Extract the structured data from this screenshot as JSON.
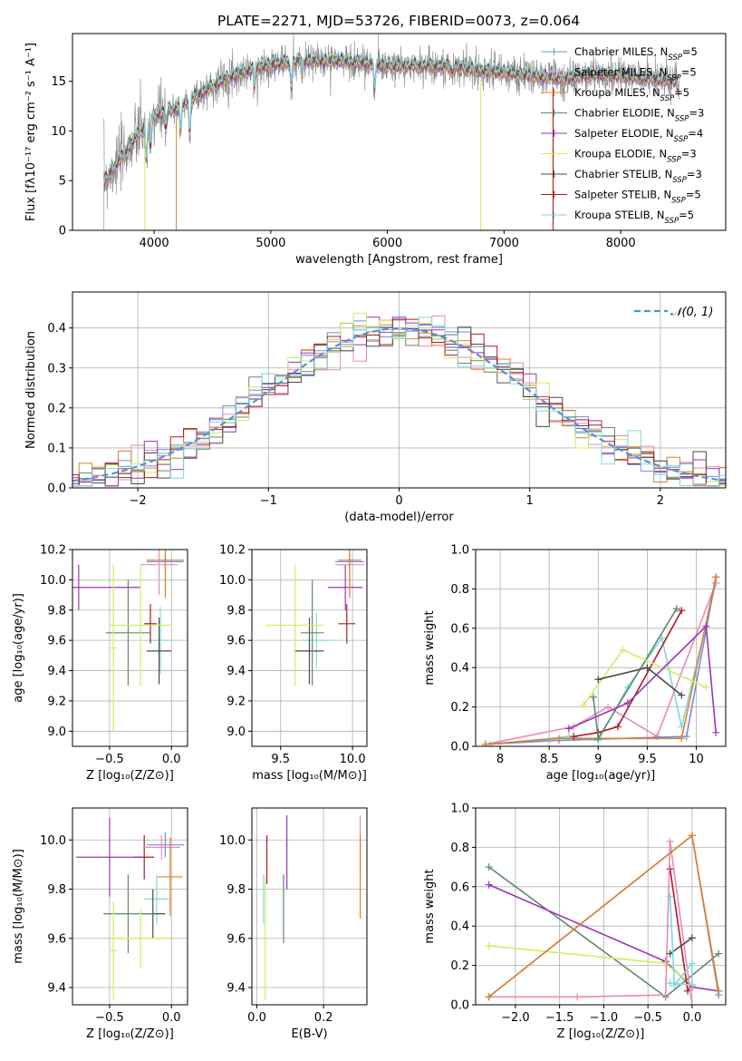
{
  "colors": {
    "chabrier_miles": "#6f8fe0",
    "salpeter_miles": "#e88ab7",
    "kroupa_miles": "#e07f28",
    "chabrier_elodie": "#5f8a6a",
    "salpeter_elodie": "#9b35b5",
    "kroupa_elodie": "#d4eb60",
    "chabrier_stelib": "#4a4a4a",
    "salpeter_stelib": "#b01a24",
    "kroupa_stelib": "#7fd9de",
    "data_gray": "#808080",
    "normal_dashed": "#5b8fd8",
    "grid": "#b0b0b0"
  },
  "chart_data": [
    {
      "id": "spectrum",
      "type": "line",
      "title": "PLATE=2271, MJD=53726, FIBERID=0073, z=0.064",
      "xlabel": "wavelength [Angstrom, rest frame]",
      "ylabel": "Flux [fλ10⁻¹⁷ erg cm⁻² s⁻¹ A⁻¹]",
      "xlim": [
        3300,
        8900
      ],
      "ylim": [
        0,
        19.8
      ],
      "xticks": [
        4000,
        5000,
        6000,
        7000,
        8000
      ],
      "yticks": [
        0,
        5,
        10,
        15
      ],
      "grid": false,
      "legend_position": "top-right",
      "legend": [
        {
          "label": "Chabrier MILES, N_SSP=5",
          "color_key": "chabrier_miles"
        },
        {
          "label": "Salpeter MILES, N_SSP=5",
          "color_key": "salpeter_miles"
        },
        {
          "label": "Kroupa MILES, N_SSP=5",
          "color_key": "kroupa_miles"
        },
        {
          "label": "Chabrier ELODIE, N_SSP=3",
          "color_key": "chabrier_elodie"
        },
        {
          "label": "Salpeter ELODIE, N_SSP=4",
          "color_key": "salpeter_elodie"
        },
        {
          "label": "Kroupa ELODIE, N_SSP=3",
          "color_key": "kroupa_elodie"
        },
        {
          "label": "Chabrier STELIB, N_SSP=3",
          "color_key": "chabrier_stelib"
        },
        {
          "label": "Salpeter STELIB, N_SSP=5",
          "color_key": "salpeter_stelib"
        },
        {
          "label": "Kroupa STELIB, N_SSP=5",
          "color_key": "kroupa_stelib"
        }
      ],
      "continuum": [
        [
          3570,
          5.0
        ],
        [
          3700,
          7.0
        ],
        [
          3850,
          9.5
        ],
        [
          4000,
          11.5
        ],
        [
          4200,
          12.3
        ],
        [
          4400,
          13.8
        ],
        [
          4600,
          15.2
        ],
        [
          4800,
          16.1
        ],
        [
          5000,
          16.7
        ],
        [
          5200,
          17.0
        ],
        [
          5500,
          17.1
        ],
        [
          5800,
          16.9
        ],
        [
          6000,
          16.5
        ],
        [
          6300,
          16.6
        ],
        [
          6600,
          16.4
        ],
        [
          6900,
          16.0
        ],
        [
          7200,
          15.6
        ],
        [
          7500,
          15.3
        ],
        [
          7800,
          15.7
        ],
        [
          8100,
          15.5
        ],
        [
          8400,
          15.1
        ],
        [
          8500,
          15.0
        ]
      ],
      "absorption_features": [
        [
          3934,
          4.0
        ],
        [
          3969,
          3.5
        ],
        [
          4102,
          2.0
        ],
        [
          4227,
          2.5
        ],
        [
          4304,
          3.5
        ],
        [
          4861,
          2.0
        ],
        [
          5175,
          3.0
        ],
        [
          5270,
          1.5
        ],
        [
          5890,
          2.5
        ],
        [
          6563,
          1.0
        ],
        [
          8498,
          1.0
        ],
        [
          8542,
          1.5
        ]
      ],
      "model_dropouts": [
        [
          3920,
          "kroupa_elodie"
        ],
        [
          4190,
          "kroupa_miles"
        ],
        [
          6800,
          "kroupa_elodie"
        ],
        [
          7420,
          "kroupa_miles"
        ],
        [
          7420,
          "salpeter_stelib"
        ]
      ]
    },
    {
      "id": "residuals",
      "type": "line",
      "xlabel": "(data-model)/error",
      "ylabel": "Normed distribution",
      "xlim": [
        -2.5,
        2.5
      ],
      "ylim": [
        0,
        0.49
      ],
      "xticks": [
        -2,
        -1,
        0,
        1,
        2
      ],
      "xticklabels": [
        "−2",
        "−1",
        "0",
        "1",
        "2"
      ],
      "yticks": [
        0.0,
        0.1,
        0.2,
        0.3,
        0.4
      ],
      "grid": true,
      "legend_position": "top-right",
      "legend": [
        {
          "label": "𝒩(0, 1)",
          "color_key": "normal_dashed"
        }
      ],
      "bin_width": 0.1
    },
    {
      "id": "age_vs_Z",
      "type": "scatter",
      "xlabel": "Z [log₁₀(Z/Z⊙)]",
      "ylabel": "age  [log₁₀(age/yr)]",
      "xlim": [
        -0.8,
        0.13
      ],
      "ylim": [
        8.9,
        10.2
      ],
      "xticks": [
        -0.5,
        0.0
      ],
      "xticklabels": [
        "−0.5",
        "0.0"
      ],
      "yticks": [
        9.0,
        9.2,
        9.4,
        9.6,
        9.8,
        10.0,
        10.2
      ],
      "grid": true,
      "errorbars": [
        {
          "x": -0.09,
          "y": 9.6,
          "xerr": 0.1,
          "yerr": 0.22,
          "color_key": "kroupa_stelib"
        },
        {
          "x": -0.17,
          "y": 9.71,
          "xerr": 0.05,
          "yerr": 0.13,
          "color_key": "salpeter_stelib"
        },
        {
          "x": -0.1,
          "y": 9.53,
          "xerr": 0.1,
          "yerr": 0.22,
          "color_key": "chabrier_stelib"
        },
        {
          "x": -0.35,
          "y": 9.65,
          "xerr": 0.18,
          "yerr": 0.35,
          "color_key": "chabrier_elodie"
        },
        {
          "x": -0.75,
          "y": 9.95,
          "xerr": 0.5,
          "yerr": 0.15,
          "color_key": "salpeter_elodie"
        },
        {
          "x": -0.25,
          "y": 9.7,
          "xerr": 0.25,
          "yerr": 0.4,
          "color_key": "kroupa_elodie"
        },
        {
          "x": -0.47,
          "y": 9.55,
          "xerr": 0.03,
          "yerr": 0.55,
          "color_key": "kroupa_elodie"
        },
        {
          "x": -0.05,
          "y": 10.12,
          "xerr": 0.15,
          "yerr": 0.05,
          "color_key": "chabrier_miles"
        },
        {
          "x": -0.1,
          "y": 10.1,
          "xerr": 0.15,
          "yerr": 0.2,
          "color_key": "salpeter_miles"
        },
        {
          "x": -0.05,
          "y": 10.13,
          "xerr": 0.15,
          "yerr": 0.25,
          "color_key": "kroupa_miles"
        }
      ]
    },
    {
      "id": "age_vs_mass",
      "type": "scatter",
      "xlabel": "mass [log₁₀(M/M⊙)]",
      "ylabel": "",
      "xlim": [
        9.3,
        10.1
      ],
      "ylim": [
        8.9,
        10.2
      ],
      "xticks": [
        9.5,
        10.0
      ],
      "xticklabels": [
        "9.5",
        "10.0"
      ],
      "yticks": [
        9.0,
        9.2,
        9.4,
        9.6,
        9.8,
        10.0,
        10.2
      ],
      "grid": true,
      "errorbars": [
        {
          "x": 9.75,
          "y": 9.6,
          "xerr": 0.1,
          "yerr": 0.18,
          "color_key": "kroupa_stelib"
        },
        {
          "x": 9.96,
          "y": 9.71,
          "xerr": 0.06,
          "yerr": 0.13,
          "color_key": "salpeter_stelib"
        },
        {
          "x": 9.7,
          "y": 9.53,
          "xerr": 0.1,
          "yerr": 0.22,
          "color_key": "chabrier_stelib"
        },
        {
          "x": 9.72,
          "y": 9.65,
          "xerr": 0.08,
          "yerr": 0.35,
          "color_key": "chabrier_elodie"
        },
        {
          "x": 9.95,
          "y": 9.95,
          "xerr": 0.12,
          "yerr": 0.15,
          "color_key": "salpeter_elodie"
        },
        {
          "x": 9.6,
          "y": 9.7,
          "xerr": 0.2,
          "yerr": 0.4,
          "color_key": "kroupa_elodie"
        },
        {
          "x": 9.98,
          "y": 10.12,
          "xerr": 0.1,
          "yerr": 0.05,
          "color_key": "chabrier_miles"
        },
        {
          "x": 9.98,
          "y": 10.1,
          "xerr": 0.1,
          "yerr": 0.2,
          "color_key": "salpeter_miles"
        },
        {
          "x": 9.98,
          "y": 10.13,
          "xerr": 0.08,
          "yerr": 0.25,
          "color_key": "kroupa_miles"
        }
      ]
    },
    {
      "id": "mass_weight_vs_age",
      "type": "line",
      "xlabel": "age  [log₁₀(age/yr)]",
      "ylabel": "mass weight",
      "xlim": [
        7.75,
        10.3
      ],
      "ylim": [
        0,
        1.0
      ],
      "xticks": [
        8.0,
        8.5,
        9.0,
        9.5,
        10.0
      ],
      "yticks": [
        0.0,
        0.2,
        0.4,
        0.6,
        0.8,
        1.0
      ],
      "grid": true,
      "series": [
        {
          "color_key": "kroupa_stelib",
          "points": [
            [
              7.9,
              0.01
            ],
            [
              8.7,
              0.05
            ],
            [
              9.0,
              0.03
            ],
            [
              9.3,
              0.3
            ],
            [
              9.65,
              0.55
            ],
            [
              9.85,
              0.1
            ],
            [
              10.2,
              0.83
            ]
          ]
        },
        {
          "color_key": "salpeter_miles",
          "points": [
            [
              7.85,
              0.01
            ],
            [
              8.75,
              0.1
            ],
            [
              9.1,
              0.2
            ],
            [
              9.6,
              0.05
            ],
            [
              10.2,
              0.83
            ]
          ]
        },
        {
          "color_key": "chabrier_miles",
          "points": [
            [
              7.85,
              0.01
            ],
            [
              8.6,
              0.03
            ],
            [
              9.9,
              0.05
            ],
            [
              10.2,
              0.86
            ]
          ]
        },
        {
          "color_key": "kroupa_miles",
          "points": [
            [
              7.85,
              0.01
            ],
            [
              8.6,
              0.04
            ],
            [
              9.85,
              0.04
            ],
            [
              10.2,
              0.86
            ]
          ]
        },
        {
          "color_key": "salpeter_stelib",
          "points": [
            [
              8.75,
              0.05
            ],
            [
              9.0,
              0.07
            ],
            [
              9.2,
              0.1
            ],
            [
              9.85,
              0.69
            ]
          ]
        },
        {
          "color_key": "chabrier_elodie",
          "points": [
            [
              8.95,
              0.25
            ],
            [
              9.0,
              0.04
            ],
            [
              9.8,
              0.7
            ]
          ]
        },
        {
          "color_key": "kroupa_elodie",
          "points": [
            [
              8.85,
              0.21
            ],
            [
              9.25,
              0.49
            ],
            [
              10.1,
              0.3
            ]
          ]
        },
        {
          "color_key": "chabrier_stelib",
          "points": [
            [
              9.0,
              0.34
            ],
            [
              9.5,
              0.4
            ],
            [
              9.85,
              0.26
            ]
          ]
        },
        {
          "color_key": "salpeter_elodie",
          "points": [
            [
              8.7,
              0.09
            ],
            [
              9.3,
              0.22
            ],
            [
              10.1,
              0.61
            ],
            [
              10.2,
              0.07
            ]
          ]
        }
      ]
    },
    {
      "id": "mass_vs_Z",
      "type": "scatter",
      "xlabel": "Z [log₁₀(Z/Z⊙)]",
      "ylabel": "mass [log₁₀(M/M⊙)]",
      "xlim": [
        -0.8,
        0.13
      ],
      "ylim": [
        9.33,
        10.13
      ],
      "xticks": [
        -0.5,
        0.0
      ],
      "xticklabels": [
        "−0.5",
        "0.0"
      ],
      "yticks": [
        9.4,
        9.6,
        9.8,
        10.0
      ],
      "grid": true,
      "errorbars": [
        {
          "x": -0.12,
          "y": 9.76,
          "xerr": 0.1,
          "yerr": 0.1,
          "color_key": "kroupa_stelib"
        },
        {
          "x": -0.22,
          "y": 9.93,
          "xerr": 0.08,
          "yerr": 0.09,
          "color_key": "salpeter_stelib"
        },
        {
          "x": -0.15,
          "y": 9.7,
          "xerr": 0.1,
          "yerr": 0.1,
          "color_key": "chabrier_stelib"
        },
        {
          "x": -0.35,
          "y": 9.7,
          "xerr": 0.2,
          "yerr": 0.16,
          "color_key": "chabrier_elodie"
        },
        {
          "x": -0.5,
          "y": 9.93,
          "xerr": 0.27,
          "yerr": 0.16,
          "color_key": "salpeter_elodie"
        },
        {
          "x": -0.25,
          "y": 9.6,
          "xerr": 0.25,
          "yerr": 0.12,
          "color_key": "kroupa_elodie"
        },
        {
          "x": -0.47,
          "y": 9.55,
          "xerr": 0.03,
          "yerr": 0.2,
          "color_key": "kroupa_elodie"
        },
        {
          "x": -0.05,
          "y": 9.98,
          "xerr": 0.15,
          "yerr": 0.05,
          "color_key": "chabrier_miles"
        },
        {
          "x": -0.08,
          "y": 9.97,
          "xerr": 0.15,
          "yerr": 0.05,
          "color_key": "salpeter_miles"
        },
        {
          "x": -0.01,
          "y": 9.85,
          "xerr": 0.1,
          "yerr": 0.16,
          "color_key": "kroupa_miles"
        }
      ]
    },
    {
      "id": "mass_vs_ebv",
      "type": "scatter",
      "xlabel": "E(B-V)",
      "ylabel": "",
      "xlim": [
        -0.015,
        0.33
      ],
      "ylim": [
        9.33,
        10.13
      ],
      "xticks": [
        0.0,
        0.2
      ],
      "xticklabels": [
        "0.0",
        "0.2"
      ],
      "yticks": [
        9.4,
        9.6,
        9.8,
        10.0
      ],
      "grid": true,
      "errorbars": [
        {
          "x": 0.02,
          "y": 9.76,
          "xerr": 0,
          "yerr": 0.1,
          "color_key": "kroupa_stelib"
        },
        {
          "x": 0.03,
          "y": 9.92,
          "xerr": 0,
          "yerr": 0.1,
          "color_key": "salpeter_stelib"
        },
        {
          "x": 0.08,
          "y": 9.72,
          "xerr": 0,
          "yerr": 0.14,
          "color_key": "chabrier_elodie"
        },
        {
          "x": 0.09,
          "y": 9.95,
          "xerr": 0,
          "yerr": 0.15,
          "color_key": "salpeter_elodie"
        },
        {
          "x": 0.025,
          "y": 9.6,
          "xerr": 0,
          "yerr": 0.25,
          "color_key": "kroupa_elodie"
        },
        {
          "x": 0.31,
          "y": 9.98,
          "xerr": 0,
          "yerr": 0.12,
          "color_key": "salpeter_miles"
        },
        {
          "x": 0.31,
          "y": 9.85,
          "xerr": 0,
          "yerr": 0.17,
          "color_key": "kroupa_miles"
        }
      ]
    },
    {
      "id": "mass_weight_vs_Z",
      "type": "line",
      "xlabel": "Z [log₁₀(Z/Z⊙)]",
      "ylabel": "mass weight",
      "xlim": [
        -2.45,
        0.38
      ],
      "ylim": [
        0,
        1.0
      ],
      "xticks": [
        -2.0,
        -1.5,
        -1.0,
        -0.5,
        0.0
      ],
      "xticklabels": [
        "−2.0",
        "−1.5",
        "−1.0",
        "−0.5",
        "0.0"
      ],
      "yticks": [
        0.0,
        0.2,
        0.4,
        0.6,
        0.8,
        1.0
      ],
      "grid": true,
      "series": [
        {
          "color_key": "chabrier_elodie",
          "points": [
            [
              -2.3,
              0.7
            ],
            [
              -0.3,
              0.04
            ],
            [
              0.3,
              0.26
            ]
          ]
        },
        {
          "color_key": "salpeter_elodie",
          "points": [
            [
              -2.3,
              0.61
            ],
            [
              -0.3,
              0.22
            ],
            [
              0.0,
              0.09
            ],
            [
              0.3,
              0.07
            ]
          ]
        },
        {
          "color_key": "kroupa_elodie",
          "points": [
            [
              -2.3,
              0.3
            ],
            [
              -0.3,
              0.21
            ],
            [
              0.0,
              0.1
            ]
          ]
        },
        {
          "color_key": "salpeter_stelib",
          "points": [
            [
              -0.25,
              0.69
            ],
            [
              -0.05,
              0.07
            ],
            [
              0.0,
              0.1
            ]
          ]
        },
        {
          "color_key": "salpeter_miles",
          "points": [
            [
              -2.3,
              0.04
            ],
            [
              -1.3,
              0.04
            ],
            [
              -0.3,
              0.05
            ],
            [
              -0.25,
              0.83
            ],
            [
              0.0,
              0.0
            ]
          ]
        },
        {
          "color_key": "chabrier_miles",
          "points": [
            [
              -2.3,
              0.04
            ],
            [
              0.0,
              0.86
            ],
            [
              0.3,
              0.05
            ]
          ]
        },
        {
          "color_key": "kroupa_miles",
          "points": [
            [
              -2.3,
              0.04
            ],
            [
              0.0,
              0.86
            ],
            [
              0.3,
              0.07
            ]
          ]
        },
        {
          "color_key": "chabrier_stelib",
          "points": [
            [
              -0.25,
              0.26
            ],
            [
              0.0,
              0.34
            ]
          ]
        },
        {
          "color_key": "kroupa_stelib",
          "points": [
            [
              -0.25,
              0.55
            ],
            [
              -0.2,
              0.1
            ],
            [
              0.0,
              0.21
            ],
            [
              0.0,
              0.1
            ],
            [
              -0.25,
              0.11
            ]
          ]
        }
      ]
    }
  ]
}
